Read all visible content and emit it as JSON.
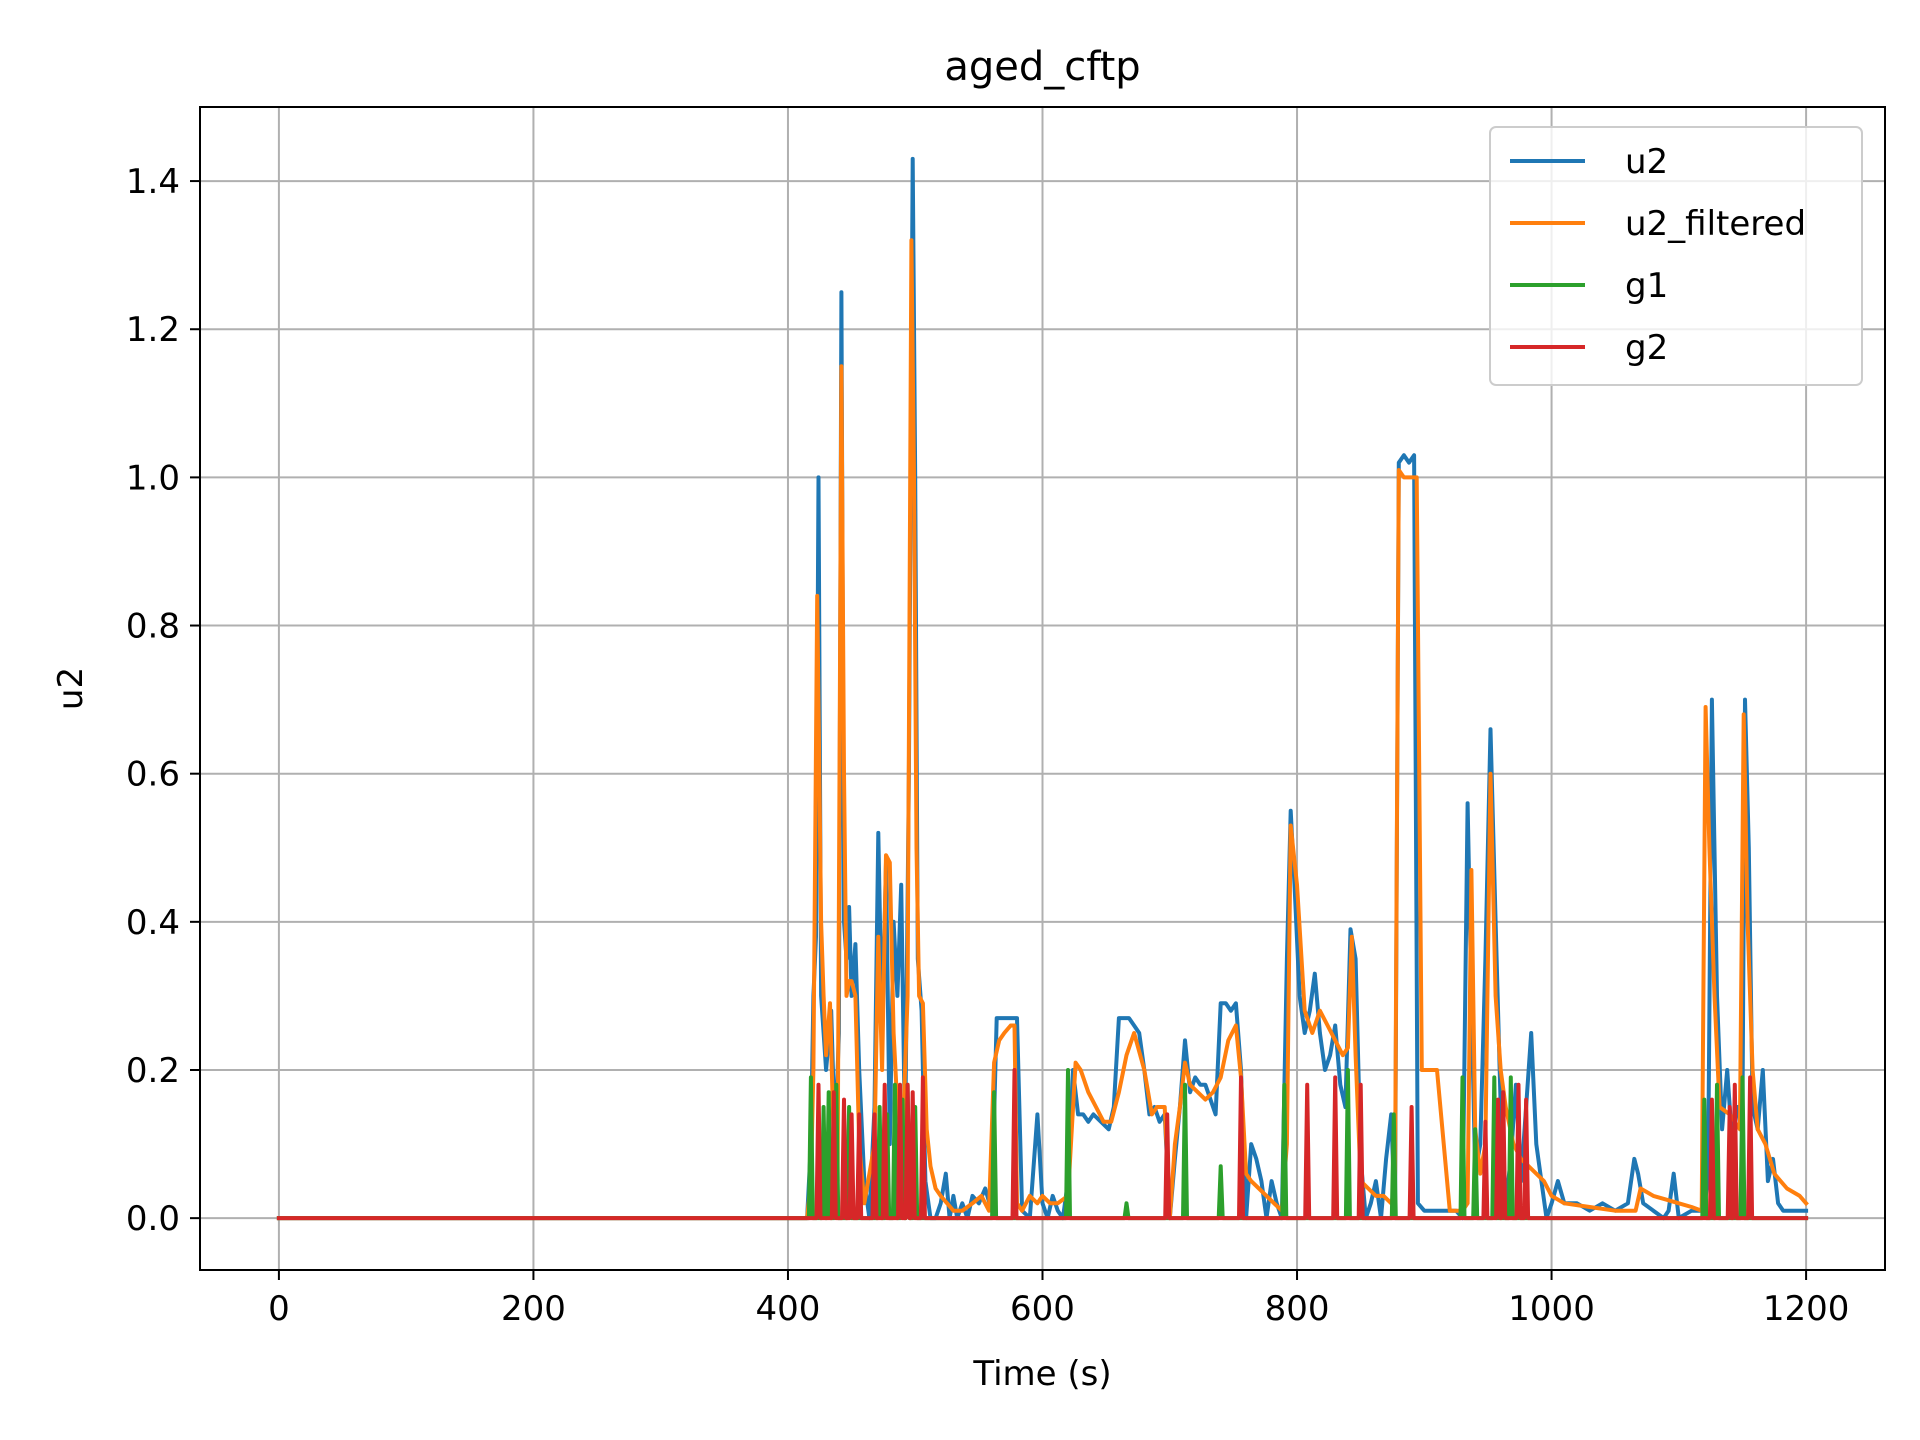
{
  "chart_data": {
    "type": "line",
    "title": "aged_cftp",
    "xlabel": "Time (s)",
    "ylabel": "u2",
    "xlim": [
      -62,
      1262
    ],
    "ylim": [
      -0.07,
      1.5
    ],
    "xticks": [
      0,
      200,
      400,
      600,
      800,
      1000,
      1200
    ],
    "xtick_labels": [
      "0",
      "200",
      "400",
      "600",
      "800",
      "1000",
      "1200"
    ],
    "yticks": [
      0.0,
      0.2,
      0.4,
      0.6,
      0.8,
      1.0,
      1.2,
      1.4
    ],
    "ytick_labels": [
      "0.0",
      "0.2",
      "0.4",
      "0.6",
      "0.8",
      "1.0",
      "1.2",
      "1.4"
    ],
    "grid": true,
    "legend_position": "top-right",
    "series": [
      {
        "name": "u2",
        "color": "#1f77b4",
        "x": [
          0,
          415,
          418,
          420,
          422,
          424,
          426,
          430,
          434,
          437,
          440,
          442,
          444,
          446,
          448,
          450,
          453,
          456,
          460,
          464,
          468,
          471,
          474,
          477,
          480,
          483,
          486,
          489,
          492,
          495,
          498,
          500,
          502,
          505,
          508,
          512,
          516,
          520,
          524,
          527,
          530,
          533,
          537,
          541,
          545,
          550,
          555,
          560,
          564,
          568,
          572,
          576,
          580,
          584,
          590,
          596,
          600,
          604,
          608,
          612,
          616,
          620,
          624,
          628,
          632,
          636,
          640,
          646,
          652,
          656,
          660,
          664,
          668,
          672,
          676,
          680,
          684,
          688,
          692,
          696,
          700,
          704,
          708,
          712,
          716,
          720,
          724,
          728,
          732,
          736,
          740,
          744,
          748,
          752,
          756,
          760,
          764,
          768,
          772,
          776,
          780,
          784,
          788,
          792,
          795,
          798,
          802,
          806,
          810,
          814,
          818,
          822,
          826,
          830,
          834,
          838,
          842,
          846,
          850,
          854,
          858,
          862,
          866,
          870,
          874,
          877,
          880,
          884,
          888,
          892,
          895,
          900,
          905,
          910,
          915,
          920,
          925,
          930,
          934,
          937,
          940,
          944,
          948,
          952,
          956,
          960,
          964,
          968,
          972,
          976,
          980,
          984,
          988,
          992,
          996,
          1000,
          1005,
          1010,
          1020,
          1030,
          1040,
          1050,
          1060,
          1065,
          1068,
          1072,
          1080,
          1088,
          1092,
          1096,
          1100,
          1110,
          1116,
          1120,
          1123,
          1126,
          1130,
          1134,
          1138,
          1142,
          1146,
          1150,
          1152,
          1155,
          1158,
          1162,
          1166,
          1170,
          1174,
          1178,
          1182,
          1190,
          1200
        ],
        "y": [
          0.0,
          0.0,
          0.1,
          0.3,
          0.38,
          1.0,
          0.3,
          0.2,
          0.28,
          0.1,
          0.25,
          1.25,
          0.4,
          0.35,
          0.42,
          0.3,
          0.37,
          0.2,
          0.05,
          0.0,
          0.15,
          0.52,
          0.25,
          0.48,
          0.1,
          0.4,
          0.3,
          0.45,
          0.1,
          0.6,
          1.43,
          1.0,
          0.35,
          0.28,
          0.05,
          0.0,
          0.0,
          0.02,
          0.06,
          0.0,
          0.03,
          0.0,
          0.02,
          0.0,
          0.03,
          0.02,
          0.04,
          0.01,
          0.27,
          0.27,
          0.27,
          0.27,
          0.27,
          0.01,
          0.0,
          0.14,
          0.02,
          0.0,
          0.03,
          0.01,
          0.0,
          0.05,
          0.2,
          0.14,
          0.14,
          0.13,
          0.14,
          0.13,
          0.12,
          0.15,
          0.27,
          0.27,
          0.27,
          0.26,
          0.25,
          0.2,
          0.14,
          0.15,
          0.13,
          0.14,
          0.0,
          0.08,
          0.15,
          0.24,
          0.17,
          0.19,
          0.18,
          0.18,
          0.16,
          0.14,
          0.29,
          0.29,
          0.28,
          0.29,
          0.2,
          0.0,
          0.1,
          0.08,
          0.05,
          0.0,
          0.05,
          0.02,
          0.0,
          0.35,
          0.55,
          0.45,
          0.3,
          0.25,
          0.28,
          0.33,
          0.25,
          0.2,
          0.22,
          0.26,
          0.18,
          0.15,
          0.39,
          0.35,
          0.08,
          0.0,
          0.02,
          0.05,
          0.0,
          0.08,
          0.14,
          0.0,
          1.02,
          1.03,
          1.02,
          1.03,
          0.02,
          0.01,
          0.01,
          0.01,
          0.01,
          0.01,
          0.01,
          0.0,
          0.56,
          0.3,
          0.06,
          0.1,
          0.35,
          0.66,
          0.4,
          0.15,
          0.02,
          0.08,
          0.18,
          0.05,
          0.15,
          0.25,
          0.1,
          0.05,
          0.0,
          0.02,
          0.05,
          0.02,
          0.02,
          0.01,
          0.02,
          0.01,
          0.02,
          0.08,
          0.06,
          0.02,
          0.01,
          0.0,
          0.01,
          0.06,
          0.0,
          0.01,
          0.01,
          0.01,
          0.06,
          0.7,
          0.3,
          0.12,
          0.2,
          0.1,
          0.15,
          0.15,
          0.7,
          0.5,
          0.15,
          0.12,
          0.2,
          0.05,
          0.08,
          0.02,
          0.01,
          0.01,
          0.01
        ]
      },
      {
        "name": "u2_filtered",
        "color": "#ff7f0e",
        "x": [
          0,
          415,
          418,
          420,
          423,
          426,
          428,
          430,
          433,
          436,
          439,
          442,
          444,
          446,
          448,
          450,
          453,
          456,
          460,
          464,
          468,
          471,
          474,
          477,
          480,
          483,
          486,
          490,
          494,
          497,
          499,
          501,
          503,
          506,
          509,
          512,
          516,
          520,
          525,
          530,
          537,
          545,
          552,
          558,
          562,
          566,
          570,
          575,
          578,
          580,
          584,
          590,
          596,
          600,
          606,
          612,
          620,
          626,
          630,
          636,
          642,
          648,
          654,
          660,
          666,
          672,
          680,
          686,
          690,
          696,
          700,
          704,
          708,
          712,
          716,
          722,
          728,
          734,
          740,
          746,
          752,
          756,
          760,
          764,
          770,
          776,
          782,
          788,
          792,
          795,
          800,
          806,
          812,
          818,
          824,
          830,
          836,
          840,
          843,
          846,
          850,
          856,
          862,
          868,
          874,
          877,
          880,
          884,
          890,
          894,
          898,
          904,
          910,
          920,
          930,
          934,
          937,
          940,
          944,
          948,
          952,
          956,
          960,
          964,
          970,
          976,
          982,
          988,
          994,
          1000,
          1010,
          1030,
          1050,
          1066,
          1070,
          1080,
          1090,
          1100,
          1110,
          1118,
          1121,
          1124,
          1128,
          1132,
          1140,
          1148,
          1151,
          1154,
          1158,
          1162,
          1168,
          1175,
          1185,
          1195,
          1200
        ],
        "y": [
          0.0,
          0.0,
          0.05,
          0.2,
          0.84,
          0.4,
          0.3,
          0.22,
          0.29,
          0.1,
          0.05,
          1.15,
          0.6,
          0.3,
          0.32,
          0.32,
          0.3,
          0.1,
          0.02,
          0.06,
          0.1,
          0.38,
          0.2,
          0.49,
          0.48,
          0.25,
          0.15,
          0.1,
          0.3,
          1.32,
          1.0,
          0.5,
          0.3,
          0.29,
          0.12,
          0.07,
          0.04,
          0.03,
          0.02,
          0.01,
          0.01,
          0.02,
          0.03,
          0.01,
          0.21,
          0.24,
          0.25,
          0.26,
          0.26,
          0.02,
          0.01,
          0.03,
          0.02,
          0.03,
          0.02,
          0.02,
          0.03,
          0.21,
          0.2,
          0.17,
          0.15,
          0.13,
          0.13,
          0.17,
          0.22,
          0.25,
          0.2,
          0.14,
          0.15,
          0.15,
          0.0,
          0.1,
          0.15,
          0.21,
          0.18,
          0.17,
          0.16,
          0.17,
          0.19,
          0.24,
          0.26,
          0.19,
          0.06,
          0.05,
          0.04,
          0.03,
          0.02,
          0.01,
          0.1,
          0.53,
          0.45,
          0.28,
          0.25,
          0.28,
          0.26,
          0.24,
          0.22,
          0.23,
          0.38,
          0.22,
          0.05,
          0.04,
          0.03,
          0.03,
          0.02,
          0.04,
          1.01,
          1.0,
          1.0,
          1.0,
          0.2,
          0.2,
          0.2,
          0.01,
          0.01,
          0.02,
          0.47,
          0.12,
          0.06,
          0.1,
          0.6,
          0.3,
          0.2,
          0.15,
          0.1,
          0.08,
          0.07,
          0.06,
          0.05,
          0.03,
          0.02,
          0.015,
          0.01,
          0.01,
          0.04,
          0.03,
          0.025,
          0.02,
          0.015,
          0.01,
          0.69,
          0.5,
          0.3,
          0.15,
          0.14,
          0.12,
          0.68,
          0.4,
          0.2,
          0.12,
          0.1,
          0.06,
          0.04,
          0.03,
          0.02
        ]
      },
      {
        "name": "g1",
        "color": "#2ca02c",
        "pulses": [
          [
            418,
            0.19
          ],
          [
            428,
            0.15
          ],
          [
            432,
            0.17
          ],
          [
            438,
            0.18
          ],
          [
            448,
            0.15
          ],
          [
            460,
            0.0
          ],
          [
            472,
            0.15
          ],
          [
            478,
            0.14
          ],
          [
            484,
            0.18
          ],
          [
            490,
            0.16
          ],
          [
            494,
            0.18
          ],
          [
            500,
            0.15
          ],
          [
            505,
            0.0
          ],
          [
            562,
            0.17
          ],
          [
            620,
            0.2
          ],
          [
            666,
            0.02
          ],
          [
            712,
            0.18
          ],
          [
            740,
            0.07
          ],
          [
            790,
            0.18
          ],
          [
            840,
            0.2
          ],
          [
            876,
            0.14
          ],
          [
            930,
            0.19
          ],
          [
            940,
            0.12
          ],
          [
            955,
            0.19
          ],
          [
            968,
            0.19
          ],
          [
            985,
            0.0
          ],
          [
            1120,
            0.16
          ],
          [
            1130,
            0.18
          ],
          [
            1150,
            0.19
          ]
        ],
        "baseline": 0.0
      },
      {
        "name": "g2",
        "color": "#d62728",
        "pulses": [
          [
            424,
            0.18
          ],
          [
            436,
            0.17
          ],
          [
            444,
            0.16
          ],
          [
            450,
            0.14
          ],
          [
            456,
            0.14
          ],
          [
            468,
            0.14
          ],
          [
            476,
            0.18
          ],
          [
            488,
            0.18
          ],
          [
            494,
            0.18
          ],
          [
            498,
            0.17
          ],
          [
            506,
            0.19
          ],
          [
            578,
            0.2
          ],
          [
            698,
            0.14
          ],
          [
            756,
            0.19
          ],
          [
            808,
            0.18
          ],
          [
            830,
            0.19
          ],
          [
            850,
            0.18
          ],
          [
            890,
            0.15
          ],
          [
            948,
            0.13
          ],
          [
            958,
            0.16
          ],
          [
            962,
            0.17
          ],
          [
            974,
            0.18
          ],
          [
            980,
            0.16
          ],
          [
            1126,
            0.16
          ],
          [
            1140,
            0.15
          ],
          [
            1144,
            0.18
          ],
          [
            1156,
            0.19
          ]
        ],
        "baseline": 0.0
      }
    ]
  }
}
